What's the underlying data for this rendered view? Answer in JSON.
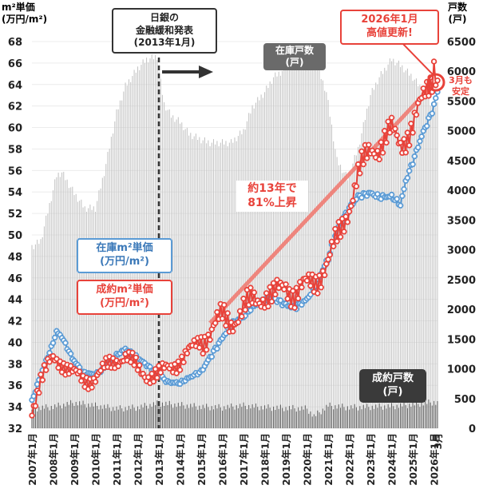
{
  "chart_data": {
    "type": "line",
    "y_left_label": "m²単価",
    "y_left_unit": "(万円/m²)",
    "y_right_label": "戸数",
    "y_right_unit": "(戸)",
    "y_left_range": [
      32,
      68
    ],
    "y_left_ticks": [
      32,
      34,
      36,
      38,
      40,
      42,
      44,
      46,
      48,
      50,
      52,
      54,
      56,
      58,
      60,
      62,
      64,
      66,
      68
    ],
    "y_right_range": [
      0,
      6500
    ],
    "y_right_ticks": [
      0,
      500,
      1000,
      1500,
      2000,
      2500,
      3000,
      3500,
      4000,
      4500,
      5000,
      5500,
      6000,
      6500
    ],
    "x_ticks": [
      "2007年1月",
      "2008年1月",
      "2009年1月",
      "2010年1月",
      "2011年1月",
      "2012年1月",
      "2013年1月",
      "2014年1月",
      "2015年1月",
      "2016年1月",
      "2017年1月",
      "2018年1月",
      "2019年1月",
      "2020年1月",
      "2021年1月",
      "2022年1月",
      "2023年1月",
      "2024年1月",
      "2025年1月",
      "2026年1月",
      "3月"
    ],
    "x_range": [
      "2007-01",
      "2026-03"
    ],
    "annotations": {
      "policy": [
        "日銀の",
        "金融緩和発表",
        "(2013年1月)"
      ],
      "policy_date": "2013-01",
      "growth": [
        "約13年で",
        "81%上昇"
      ],
      "record": [
        "2026年1月",
        "高値更新!"
      ],
      "stable": [
        "3月も",
        "安定"
      ]
    },
    "series": [
      {
        "name": "在庫戸数",
        "unit": "(戸)",
        "axis": "right",
        "color": "#c4c4c4",
        "kind": "bar",
        "keypoints": [
          [
            "2007-01",
            3050
          ],
          [
            "2007-06",
            3150
          ],
          [
            "2008-01",
            4000
          ],
          [
            "2008-03",
            4250
          ],
          [
            "2008-06",
            4300
          ],
          [
            "2009-01",
            3950
          ],
          [
            "2009-07",
            3700
          ],
          [
            "2010-01",
            3700
          ],
          [
            "2010-06",
            4300
          ],
          [
            "2011-01",
            5300
          ],
          [
            "2011-06",
            5750
          ],
          [
            "2012-01",
            6050
          ],
          [
            "2012-06",
            6200
          ],
          [
            "2012-12",
            6250
          ],
          [
            "2013-01",
            6000
          ],
          [
            "2013-04",
            5450
          ],
          [
            "2013-08",
            5250
          ],
          [
            "2014-01",
            5150
          ],
          [
            "2014-06",
            4950
          ],
          [
            "2015-01",
            4850
          ],
          [
            "2015-06",
            4800
          ],
          [
            "2016-01",
            4800
          ],
          [
            "2016-06",
            4800
          ],
          [
            "2017-01",
            5000
          ],
          [
            "2017-06",
            5400
          ],
          [
            "2018-01",
            5650
          ],
          [
            "2018-06",
            5900
          ],
          [
            "2019-01",
            6050
          ],
          [
            "2019-06",
            6150
          ],
          [
            "2020-01",
            6200
          ],
          [
            "2020-06",
            6150
          ],
          [
            "2020-12",
            5650
          ],
          [
            "2021-06",
            4500
          ],
          [
            "2021-12",
            4200
          ],
          [
            "2022-06",
            4700
          ],
          [
            "2023-01",
            5600
          ],
          [
            "2023-06",
            5900
          ],
          [
            "2024-01",
            6200
          ],
          [
            "2024-06",
            6100
          ],
          [
            "2025-01",
            5900
          ],
          [
            "2025-06",
            5700
          ],
          [
            "2026-01",
            5400
          ],
          [
            "2026-03",
            5450
          ]
        ]
      },
      {
        "name": "成約戸数",
        "unit": "(戸)",
        "axis": "right",
        "color": "#555555",
        "kind": "bar",
        "keypoints": [
          [
            "2007-01",
            330
          ],
          [
            "2008-01",
            360
          ],
          [
            "2009-01",
            430
          ],
          [
            "2010-01",
            380
          ],
          [
            "2011-01",
            330
          ],
          [
            "2012-01",
            350
          ],
          [
            "2013-01",
            420
          ],
          [
            "2014-01",
            390
          ],
          [
            "2015-01",
            360
          ],
          [
            "2016-01",
            350
          ],
          [
            "2017-01",
            380
          ],
          [
            "2018-01",
            350
          ],
          [
            "2019-01",
            340
          ],
          [
            "2020-01",
            330
          ],
          [
            "2020-05",
            200
          ],
          [
            "2021-01",
            380
          ],
          [
            "2022-01",
            350
          ],
          [
            "2023-01",
            360
          ],
          [
            "2024-01",
            370
          ],
          [
            "2025-01",
            400
          ],
          [
            "2026-01",
            440
          ],
          [
            "2026-03",
            420
          ]
        ]
      },
      {
        "name": "在庫m²単価",
        "unit": "(万円/m²)",
        "axis": "left",
        "color": "#5b9bd5",
        "kind": "line",
        "keypoints": [
          [
            "2007-01",
            34.5
          ],
          [
            "2007-06",
            37.0
          ],
          [
            "2007-12",
            39.5
          ],
          [
            "2008-03",
            41.0
          ],
          [
            "2008-06",
            40.5
          ],
          [
            "2008-12",
            38.5
          ],
          [
            "2009-06",
            37.2
          ],
          [
            "2010-01",
            37.0
          ],
          [
            "2010-06",
            37.6
          ],
          [
            "2011-01",
            38.8
          ],
          [
            "2011-06",
            39.4
          ],
          [
            "2011-12",
            38.7
          ],
          [
            "2012-06",
            37.9
          ],
          [
            "2013-01",
            37.0
          ],
          [
            "2013-06",
            36.3
          ],
          [
            "2014-01",
            36.2
          ],
          [
            "2014-06",
            36.7
          ],
          [
            "2015-01",
            37.3
          ],
          [
            "2015-06",
            38.6
          ],
          [
            "2016-01",
            40.4
          ],
          [
            "2016-06",
            41.7
          ],
          [
            "2017-01",
            42.4
          ],
          [
            "2017-06",
            43.3
          ],
          [
            "2018-01",
            43.9
          ],
          [
            "2018-06",
            44.1
          ],
          [
            "2019-01",
            43.5
          ],
          [
            "2019-06",
            43.2
          ],
          [
            "2020-01",
            44.0
          ],
          [
            "2020-06",
            45.4
          ],
          [
            "2021-01",
            47.8
          ],
          [
            "2021-06",
            50.5
          ],
          [
            "2022-01",
            52.5
          ],
          [
            "2022-06",
            53.6
          ],
          [
            "2023-01",
            53.9
          ],
          [
            "2023-06",
            53.5
          ],
          [
            "2024-01",
            53.6
          ],
          [
            "2024-06",
            52.8
          ],
          [
            "2024-09",
            55.0
          ],
          [
            "2025-01",
            56.8
          ],
          [
            "2025-06",
            59.2
          ],
          [
            "2025-12",
            61.5
          ],
          [
            "2026-03",
            63.3
          ]
        ]
      },
      {
        "name": "成約m²単価",
        "unit": "(万円/m²)",
        "axis": "left",
        "color": "#e8423a",
        "kind": "line",
        "keypoints": [
          [
            "2007-01",
            33.8
          ],
          [
            "2007-06",
            36.5
          ],
          [
            "2008-01",
            38.5
          ],
          [
            "2008-06",
            38.2
          ],
          [
            "2009-01",
            37.0
          ],
          [
            "2009-06",
            36.4
          ],
          [
            "2010-01",
            36.8
          ],
          [
            "2010-06",
            37.5
          ],
          [
            "2011-01",
            38.4
          ],
          [
            "2011-06",
            38.8
          ],
          [
            "2012-01",
            37.5
          ],
          [
            "2012-06",
            37.0
          ],
          [
            "2013-01",
            37.0
          ],
          [
            "2013-06",
            37.6
          ],
          [
            "2014-01",
            38.3
          ],
          [
            "2014-06",
            39.0
          ],
          [
            "2015-01",
            40.3
          ],
          [
            "2015-06",
            41.0
          ],
          [
            "2016-01",
            42.3
          ],
          [
            "2016-06",
            42.0
          ],
          [
            "2017-01",
            43.0
          ],
          [
            "2017-06",
            43.8
          ],
          [
            "2018-01",
            44.5
          ],
          [
            "2018-06",
            44.2
          ],
          [
            "2019-01",
            45.3
          ],
          [
            "2019-06",
            44.6
          ],
          [
            "2020-01",
            45.2
          ],
          [
            "2020-06",
            45.8
          ],
          [
            "2021-01",
            47.5
          ],
          [
            "2021-06",
            49.5
          ],
          [
            "2022-01",
            52.8
          ],
          [
            "2022-06",
            55.5
          ],
          [
            "2023-01",
            58.0
          ],
          [
            "2023-06",
            58.3
          ],
          [
            "2024-01",
            59.6
          ],
          [
            "2024-06",
            58.5
          ],
          [
            "2025-01",
            60.2
          ],
          [
            "2025-06",
            62.2
          ],
          [
            "2025-12",
            64.8
          ],
          [
            "2026-01",
            66.2
          ],
          [
            "2026-03",
            64.5
          ]
        ]
      }
    ]
  }
}
